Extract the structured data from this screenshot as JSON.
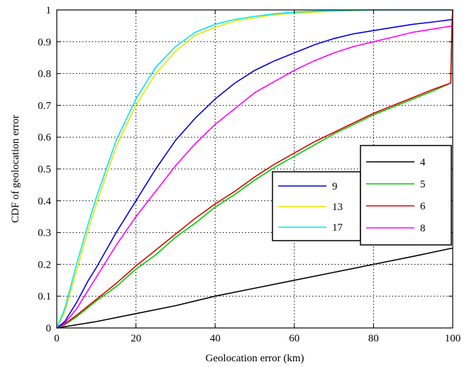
{
  "chart_data": {
    "type": "line",
    "title": "",
    "xlabel": "Geolocation error (km)",
    "ylabel": "CDF of geolocation error",
    "xlim": [
      0,
      100
    ],
    "ylim": [
      0,
      1
    ],
    "xticks": [
      0,
      20,
      40,
      60,
      80,
      100
    ],
    "xtick_labels": [
      "0",
      "20",
      "40",
      "60",
      "80",
      "100"
    ],
    "yticks": [
      0,
      0.1,
      0.2,
      0.3,
      0.4,
      0.5,
      0.6,
      0.7,
      0.8,
      0.9,
      1
    ],
    "ytick_labels": [
      "0",
      "0.1",
      "0.2",
      "0.3",
      "0.4",
      "0.5",
      "0.6",
      "0.7",
      "0.8",
      "0.9",
      "1"
    ],
    "grid": true,
    "legends": [
      {
        "placement": "center-right",
        "entries": [
          "9",
          "13",
          "17"
        ]
      },
      {
        "placement": "right",
        "entries": [
          "4",
          "5",
          "6",
          "8"
        ]
      }
    ],
    "series": [
      {
        "name": "4",
        "color": "#000000",
        "x": [
          0,
          10,
          20,
          30,
          40,
          50,
          60,
          70,
          80,
          90,
          99.5,
          100
        ],
        "y": [
          0,
          0.02,
          0.045,
          0.07,
          0.1,
          0.125,
          0.15,
          0.175,
          0.2,
          0.225,
          0.25,
          0.25
        ]
      },
      {
        "name": "5",
        "color": "#00cc00",
        "x": [
          0,
          2,
          5,
          10,
          15,
          20,
          25,
          30,
          35,
          40,
          45,
          50,
          55,
          60,
          65,
          70,
          75,
          80,
          85,
          90,
          95,
          99.5,
          99.8,
          100
        ],
        "y": [
          0,
          0.01,
          0.035,
          0.085,
          0.13,
          0.185,
          0.23,
          0.285,
          0.33,
          0.38,
          0.42,
          0.465,
          0.505,
          0.54,
          0.575,
          0.61,
          0.64,
          0.67,
          0.695,
          0.72,
          0.745,
          0.77,
          0.95,
          1.0
        ]
      },
      {
        "name": "6",
        "color": "#dd0000",
        "x": [
          0,
          2,
          5,
          10,
          15,
          20,
          25,
          30,
          35,
          40,
          45,
          50,
          55,
          60,
          65,
          70,
          75,
          80,
          85,
          90,
          95,
          99.5,
          99.8,
          100
        ],
        "y": [
          0,
          0.012,
          0.04,
          0.09,
          0.14,
          0.195,
          0.245,
          0.295,
          0.345,
          0.39,
          0.43,
          0.475,
          0.515,
          0.55,
          0.585,
          0.615,
          0.645,
          0.675,
          0.7,
          0.725,
          0.75,
          0.77,
          0.95,
          1.0
        ]
      },
      {
        "name": "8",
        "color": "#ff00ff",
        "x": [
          0,
          2,
          5,
          8,
          10,
          15,
          20,
          25,
          30,
          35,
          40,
          45,
          50,
          55,
          60,
          65,
          70,
          75,
          80,
          85,
          90,
          95,
          100
        ],
        "y": [
          0,
          0.015,
          0.06,
          0.12,
          0.16,
          0.26,
          0.35,
          0.43,
          0.51,
          0.58,
          0.64,
          0.69,
          0.74,
          0.775,
          0.81,
          0.84,
          0.865,
          0.885,
          0.9,
          0.915,
          0.93,
          0.94,
          0.95
        ]
      },
      {
        "name": "9",
        "color": "#0000dd",
        "x": [
          0,
          2,
          5,
          8,
          10,
          15,
          20,
          25,
          30,
          35,
          40,
          45,
          50,
          55,
          60,
          65,
          70,
          75,
          80,
          85,
          90,
          95,
          100
        ],
        "y": [
          0,
          0.02,
          0.08,
          0.15,
          0.19,
          0.3,
          0.4,
          0.5,
          0.59,
          0.66,
          0.72,
          0.77,
          0.81,
          0.84,
          0.865,
          0.89,
          0.91,
          0.925,
          0.935,
          0.945,
          0.955,
          0.962,
          0.97
        ]
      },
      {
        "name": "13",
        "color": "#e6e600",
        "x": [
          0,
          2,
          5,
          8,
          10,
          15,
          20,
          25,
          30,
          35,
          40,
          45,
          50,
          55,
          60,
          65,
          70,
          75,
          80,
          90,
          100
        ],
        "y": [
          0,
          0.05,
          0.18,
          0.31,
          0.39,
          0.57,
          0.7,
          0.8,
          0.87,
          0.92,
          0.945,
          0.965,
          0.975,
          0.985,
          0.99,
          0.993,
          0.996,
          0.998,
          1.0,
          1.0,
          1.0
        ]
      },
      {
        "name": "17",
        "color": "#00e5ee",
        "x": [
          0,
          2,
          5,
          8,
          10,
          15,
          20,
          25,
          30,
          35,
          40,
          45,
          50,
          55,
          60,
          65,
          70,
          75,
          80,
          90,
          100
        ],
        "y": [
          0,
          0.06,
          0.2,
          0.33,
          0.41,
          0.59,
          0.72,
          0.82,
          0.885,
          0.93,
          0.955,
          0.97,
          0.98,
          0.988,
          0.993,
          0.996,
          0.998,
          0.999,
          1.0,
          1.0,
          1.0
        ]
      }
    ]
  }
}
